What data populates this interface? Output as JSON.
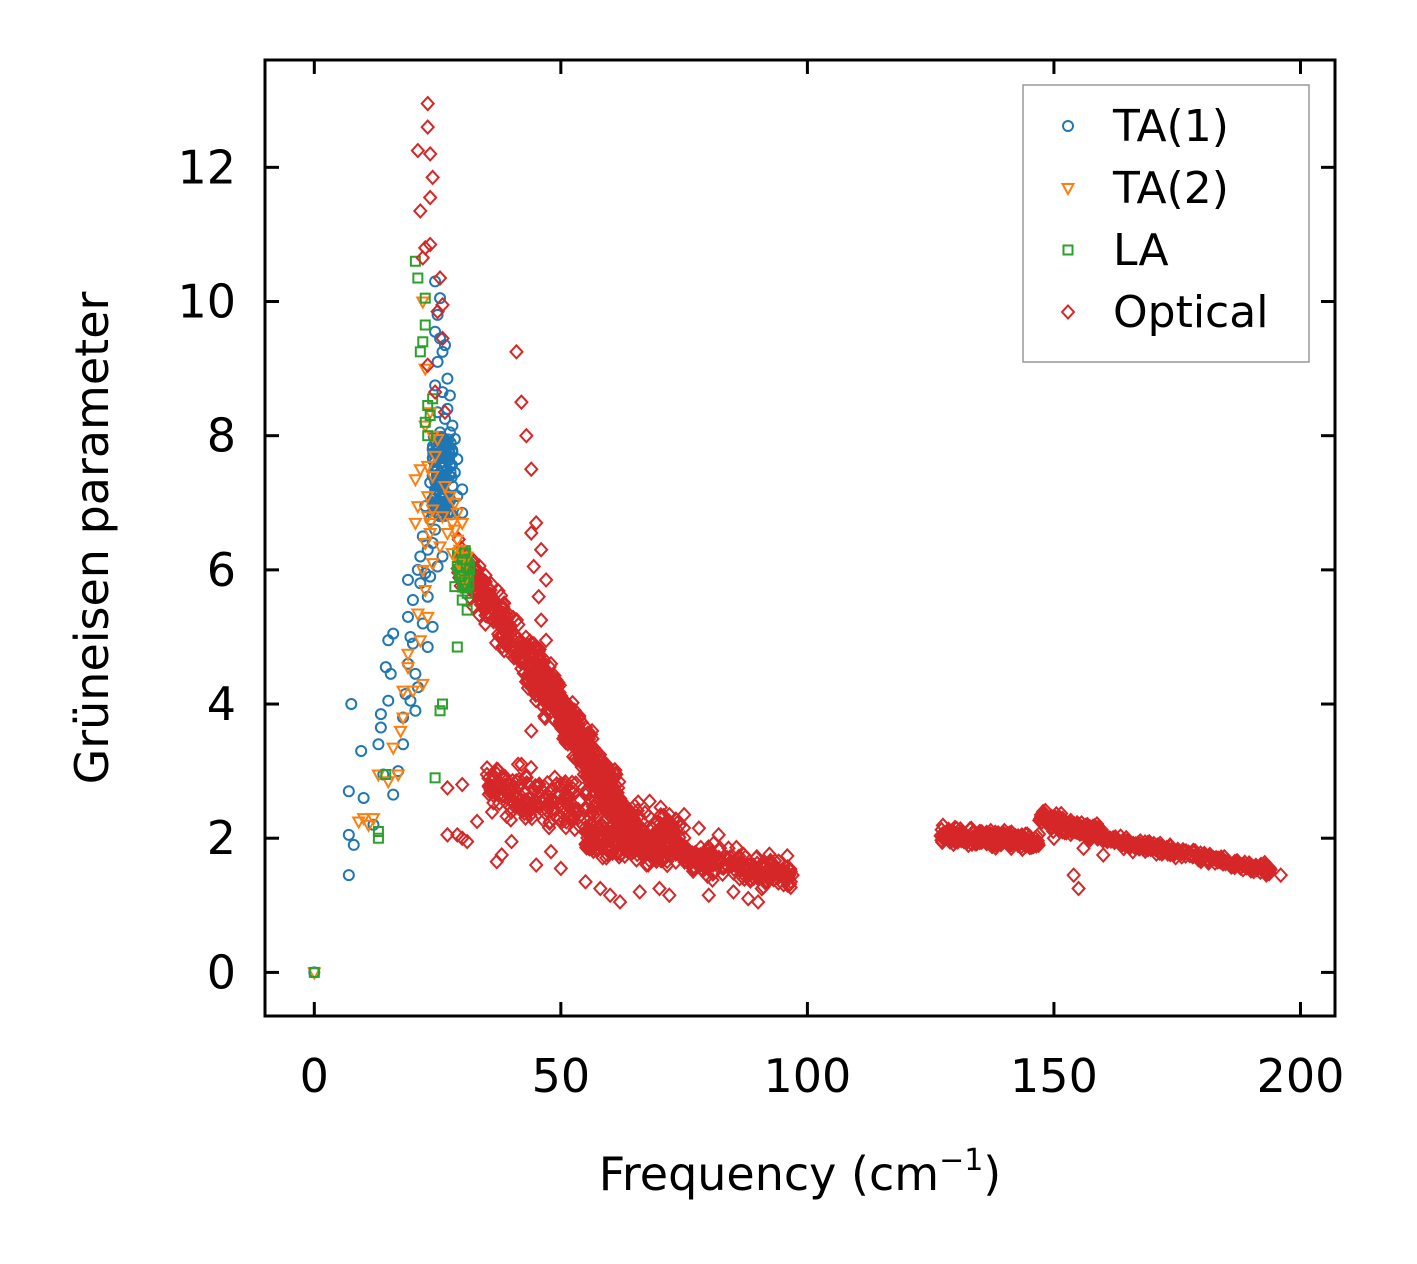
{
  "chart_data": {
    "type": "scatter",
    "title": "",
    "xlabel": "Frequency (cm",
    "xlabel_sup": "−1",
    "xlabel_close": ")",
    "ylabel": "Grüneisen parameter",
    "xlim": [
      -10,
      207
    ],
    "ylim": [
      -0.65,
      13.6
    ],
    "x_ticks": [
      0,
      50,
      100,
      150,
      200
    ],
    "y_ticks": [
      0,
      2,
      4,
      6,
      8,
      10,
      12
    ],
    "x_tick_labels": [
      "0",
      "50",
      "100",
      "150",
      "200"
    ],
    "y_tick_labels": [
      "0",
      "2",
      "4",
      "6",
      "8",
      "10",
      "12"
    ],
    "grid": false,
    "legend_position": "top-right",
    "series": [
      {
        "name": "TA(1)",
        "marker": "circle",
        "color": "#1f77b4",
        "points": [
          [
            0,
            0
          ],
          [
            7,
            1.45
          ],
          [
            7,
            2.05
          ],
          [
            7,
            2.7
          ],
          [
            8,
            1.9
          ],
          [
            7.5,
            4.0
          ],
          [
            9.5,
            3.3
          ],
          [
            10,
            2.6
          ],
          [
            12,
            2.2
          ],
          [
            13,
            3.4
          ],
          [
            13.5,
            3.65
          ],
          [
            13.5,
            3.85
          ],
          [
            14,
            2.95
          ],
          [
            14.5,
            4.55
          ],
          [
            15,
            4.05
          ],
          [
            15,
            4.95
          ],
          [
            15.5,
            4.45
          ],
          [
            16,
            2.65
          ],
          [
            16,
            5.05
          ],
          [
            17,
            3.0
          ],
          [
            18,
            3.4
          ],
          [
            18,
            3.8
          ],
          [
            18.5,
            4.15
          ],
          [
            19,
            5.3
          ],
          [
            19,
            4.6
          ],
          [
            19,
            5.85
          ],
          [
            19.5,
            5.0
          ],
          [
            19.5,
            4.05
          ],
          [
            20,
            5.55
          ],
          [
            20,
            4.9
          ],
          [
            20.5,
            3.9
          ],
          [
            20.5,
            4.45
          ],
          [
            21,
            6.0
          ],
          [
            21,
            4.25
          ],
          [
            21.5,
            5.8
          ],
          [
            21.5,
            6.2
          ],
          [
            22,
            6.5
          ],
          [
            22,
            5.2
          ],
          [
            22.5,
            6.95
          ],
          [
            22.5,
            5.95
          ],
          [
            23,
            6.3
          ],
          [
            23,
            5.6
          ],
          [
            23,
            4.85
          ],
          [
            23.5,
            7.3
          ],
          [
            23.5,
            6.75
          ],
          [
            23.5,
            5.9
          ],
          [
            24,
            7.8
          ],
          [
            24,
            7.05
          ],
          [
            24,
            6.4
          ],
          [
            24,
            5.15
          ],
          [
            24.5,
            10.3
          ],
          [
            24.5,
            9.55
          ],
          [
            24.5,
            8.75
          ],
          [
            24.5,
            7.55
          ],
          [
            24.5,
            6.6
          ],
          [
            25,
            9.8
          ],
          [
            25,
            9.1
          ],
          [
            25,
            8.35
          ],
          [
            25,
            7.25
          ],
          [
            25,
            6.05
          ],
          [
            25.5,
            10.05
          ],
          [
            25.5,
            9.45
          ],
          [
            25.5,
            8.05
          ],
          [
            25.5,
            7.6
          ],
          [
            25.5,
            6.9
          ],
          [
            26,
            9.25
          ],
          [
            26,
            8.65
          ],
          [
            26,
            7.9
          ],
          [
            26,
            7.4
          ],
          [
            26,
            6.2
          ],
          [
            26.5,
            9.35
          ],
          [
            26.5,
            8.25
          ],
          [
            26.5,
            7.7
          ],
          [
            26.5,
            7.1
          ],
          [
            27,
            8.85
          ],
          [
            27,
            8.4
          ],
          [
            27,
            7.85
          ],
          [
            27,
            7.35
          ],
          [
            27,
            6.85
          ],
          [
            27.5,
            8.6
          ],
          [
            27.5,
            8.05
          ],
          [
            27.5,
            7.55
          ],
          [
            28,
            8.15
          ],
          [
            28,
            7.75
          ],
          [
            28,
            7.25
          ],
          [
            28.5,
            7.95
          ],
          [
            28.5,
            7.45
          ],
          [
            29,
            7.65
          ],
          [
            29,
            7.1
          ],
          [
            30,
            6.85
          ],
          [
            30,
            7.2
          ],
          [
            24,
            7.0
          ],
          [
            24.5,
            7.1
          ],
          [
            25,
            7.2
          ],
          [
            25.5,
            7.3
          ],
          [
            26,
            7.0
          ],
          [
            24,
            7.4
          ],
          [
            25,
            7.5
          ],
          [
            26,
            7.6
          ],
          [
            24.5,
            7.2
          ],
          [
            25.5,
            7.0
          ],
          [
            26,
            7.25
          ],
          [
            25,
            6.95
          ]
        ]
      },
      {
        "name": "TA(2)",
        "marker": "triangle-down",
        "color": "#ff7f0e",
        "points": [
          [
            0,
            0
          ],
          [
            9,
            2.25
          ],
          [
            10,
            2.3
          ],
          [
            11,
            2.2
          ],
          [
            12,
            2.3
          ],
          [
            13,
            2.95
          ],
          [
            15,
            2.85
          ],
          [
            16,
            3.35
          ],
          [
            17,
            2.95
          ],
          [
            17.5,
            3.6
          ],
          [
            18,
            3.8
          ],
          [
            18,
            4.2
          ],
          [
            19,
            4.55
          ],
          [
            19,
            4.75
          ],
          [
            20,
            4.2
          ],
          [
            20.5,
            6.7
          ],
          [
            20.5,
            7.35
          ],
          [
            21,
            5.35
          ],
          [
            21,
            6.95
          ],
          [
            21.5,
            4.95
          ],
          [
            21.5,
            7.5
          ],
          [
            22,
            4.3
          ],
          [
            22,
            6.0
          ],
          [
            22,
            10.0
          ],
          [
            22.5,
            9.0
          ],
          [
            22.5,
            8.15
          ],
          [
            22.5,
            5.7
          ],
          [
            23,
            7.55
          ],
          [
            23,
            5.3
          ],
          [
            23,
            7.1
          ],
          [
            23.5,
            8.35
          ],
          [
            23.5,
            6.55
          ],
          [
            24,
            8.0
          ],
          [
            24,
            7.4
          ],
          [
            24,
            6.1
          ],
          [
            24.5,
            7.7
          ],
          [
            25,
            7.95
          ],
          [
            25.5,
            6.35
          ],
          [
            26,
            6.8
          ],
          [
            26.5,
            7.25
          ],
          [
            27,
            6.55
          ],
          [
            27.5,
            7.1
          ],
          [
            28,
            6.7
          ],
          [
            28,
            6.25
          ],
          [
            28.5,
            7.0
          ],
          [
            28.5,
            6.6
          ],
          [
            29,
            6.85
          ],
          [
            29,
            6.45
          ],
          [
            29.5,
            6.3
          ],
          [
            29.5,
            6.1
          ],
          [
            30,
            6.0
          ],
          [
            30,
            6.7
          ],
          [
            30.5,
            5.85
          ],
          [
            31,
            6.2
          ],
          [
            24,
            6.9
          ],
          [
            23,
            6.8
          ],
          [
            23.5,
            6.7
          ],
          [
            22.5,
            6.4
          ]
        ]
      },
      {
        "name": "LA",
        "marker": "square",
        "color": "#2ca02c",
        "points": [
          [
            0,
            0
          ],
          [
            13,
            2.0
          ],
          [
            13,
            2.1
          ],
          [
            14.5,
            2.95
          ],
          [
            20.5,
            10.6
          ],
          [
            21,
            10.35
          ],
          [
            21.5,
            9.25
          ],
          [
            22,
            9.4
          ],
          [
            22.5,
            9.65
          ],
          [
            22.5,
            10.05
          ],
          [
            22.5,
            8.2
          ],
          [
            23,
            8.0
          ],
          [
            23,
            8.45
          ],
          [
            23.5,
            8.3
          ],
          [
            24,
            8.55
          ],
          [
            24.5,
            2.9
          ],
          [
            25.5,
            3.9
          ],
          [
            26,
            4.0
          ],
          [
            29,
            4.85
          ],
          [
            29.5,
            5.9
          ],
          [
            30,
            5.55
          ],
          [
            30.5,
            6.25
          ],
          [
            30.5,
            5.85
          ],
          [
            31,
            5.65
          ],
          [
            31,
            5.4
          ],
          [
            31.5,
            6.0
          ],
          [
            29,
            6.05
          ],
          [
            28.5,
            5.75
          ],
          [
            30,
            6.15
          ]
        ]
      },
      {
        "name": "Optical",
        "marker": "diamond",
        "color": "#d62728",
        "points": [
          [
            23,
            12.95
          ],
          [
            23,
            12.6
          ],
          [
            21,
            12.25
          ],
          [
            23.5,
            12.2
          ],
          [
            24,
            11.85
          ],
          [
            23.5,
            11.55
          ],
          [
            21.5,
            11.35
          ],
          [
            22.5,
            10.8
          ],
          [
            23.5,
            10.85
          ],
          [
            25.5,
            10.35
          ],
          [
            22,
            10.65
          ],
          [
            26,
            9.95
          ],
          [
            25,
            9.85
          ],
          [
            26,
            9.45
          ],
          [
            23,
            9.05
          ],
          [
            24.5,
            8.65
          ],
          [
            26.5,
            8.35
          ],
          [
            41,
            9.25
          ],
          [
            42,
            8.5
          ],
          [
            43,
            8.0
          ],
          [
            44,
            7.5
          ],
          [
            45,
            6.7
          ],
          [
            44,
            6.55
          ],
          [
            46,
            6.3
          ],
          [
            44.5,
            6.05
          ],
          [
            47,
            5.85
          ],
          [
            45.5,
            5.6
          ],
          [
            46,
            5.25
          ],
          [
            47,
            4.95
          ],
          [
            48,
            4.6
          ],
          [
            49,
            4.3
          ],
          [
            45,
            4.05
          ],
          [
            44,
            3.6
          ],
          [
            42,
            3.1
          ],
          [
            38,
            2.9
          ],
          [
            35,
            2.95
          ],
          [
            30,
            2.8
          ],
          [
            27,
            2.75
          ],
          [
            29,
            2.05
          ],
          [
            30,
            2.0
          ],
          [
            31,
            1.95
          ],
          [
            33,
            2.25
          ],
          [
            27,
            2.05
          ],
          [
            38,
            1.75
          ],
          [
            37,
            1.65
          ],
          [
            40,
            1.95
          ],
          [
            45,
            1.6
          ],
          [
            48,
            1.8
          ],
          [
            50,
            1.55
          ],
          [
            55,
            1.35
          ],
          [
            58,
            1.25
          ],
          [
            60,
            1.15
          ],
          [
            62,
            1.05
          ],
          [
            66,
            1.2
          ],
          [
            70,
            1.25
          ],
          [
            72,
            1.15
          ],
          [
            80,
            1.15
          ],
          [
            85,
            1.2
          ],
          [
            88,
            1.1
          ],
          [
            90,
            1.05
          ],
          [
            96,
            1.3
          ],
          [
            97,
            1.45
          ],
          [
            154,
            1.45
          ],
          [
            155,
            1.25
          ],
          [
            196,
            1.45
          ],
          [
            60,
            2.55
          ],
          [
            62,
            2.4
          ],
          [
            64,
            2.25
          ],
          [
            68,
            2.55
          ],
          [
            72,
            2.35
          ],
          [
            75,
            2.35
          ],
          [
            78,
            2.15
          ],
          [
            82,
            2.05
          ],
          [
            84,
            1.85
          ],
          [
            86,
            1.7
          ],
          [
            88,
            1.6
          ],
          [
            90,
            1.55
          ],
          [
            92,
            1.5
          ],
          [
            94,
            1.45
          ],
          [
            150,
            2.0
          ],
          [
            156,
            1.85
          ],
          [
            160,
            1.75
          ],
          [
            166,
            1.8
          ]
        ]
      }
    ]
  }
}
